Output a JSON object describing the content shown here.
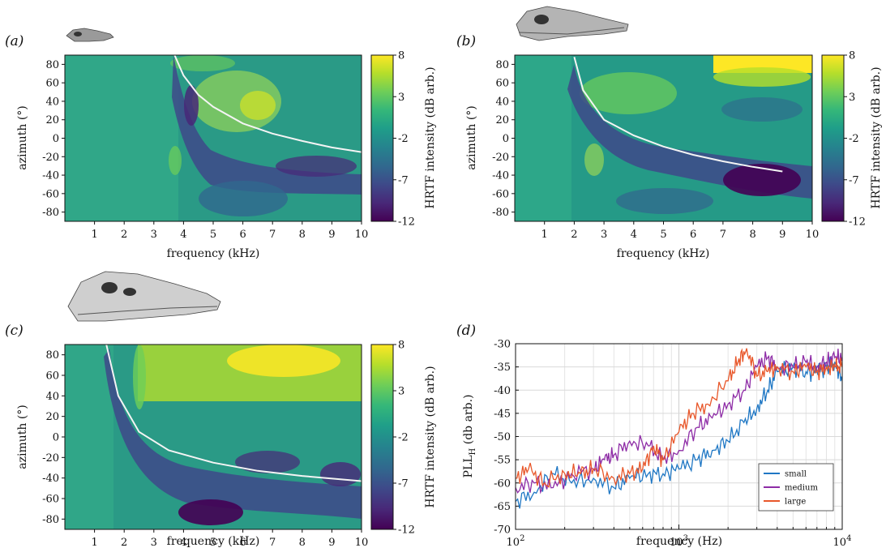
{
  "colors": {
    "viridis": [
      "#440154",
      "#482878",
      "#3e4989",
      "#31688e",
      "#26828e",
      "#1f9e89",
      "#35b779",
      "#6ece58",
      "#b5de2b",
      "#fde725"
    ],
    "small": "#1f77c4",
    "medium": "#8e2ca6",
    "large": "#e8572a",
    "curve": "#f4f4f4"
  },
  "icons": [
    "crocodile-skull-small-icon",
    "crocodile-skull-medium-icon",
    "crocodile-skull-large-icon"
  ],
  "colorbar": {
    "label": "HRTF intensity (dB arb.)",
    "ticks": [
      8,
      3,
      -2,
      -7,
      -12
    ],
    "range": [
      -12,
      8
    ]
  },
  "chart_data": [
    {
      "type": "heatmap",
      "panel": "(a)",
      "xlabel": "frequency (kHz)",
      "ylabel": "azimuth (°)",
      "xlim": [
        0,
        10
      ],
      "ylim": [
        -90,
        90
      ],
      "x_ticks": [
        1,
        2,
        3,
        4,
        5,
        6,
        7,
        8,
        9,
        10
      ],
      "y_ticks": [
        80,
        60,
        40,
        20,
        0,
        -20,
        -40,
        -60,
        -80
      ],
      "dip_curve": {
        "x": [
          3.7,
          4.0,
          4.5,
          5.0,
          6.0,
          7.0,
          8.0,
          9.0,
          10.0
        ],
        "y": [
          90,
          68,
          47,
          34,
          16,
          5,
          -3,
          -10,
          -15
        ]
      }
    },
    {
      "type": "heatmap",
      "panel": "(b)",
      "xlabel": "frequency (kHz)",
      "ylabel": "azimuth (°)",
      "xlim": [
        0,
        10
      ],
      "ylim": [
        -90,
        90
      ],
      "x_ticks": [
        1,
        2,
        3,
        4,
        5,
        6,
        7,
        8,
        9,
        10
      ],
      "y_ticks": [
        80,
        60,
        40,
        20,
        0,
        -20,
        -40,
        -60,
        -80
      ],
      "dip_curve": {
        "x": [
          2.0,
          2.3,
          3.0,
          4.0,
          5.0,
          6.0,
          7.0,
          8.0,
          9.0
        ],
        "y": [
          88,
          52,
          20,
          3,
          -9,
          -18,
          -25,
          -31,
          -36
        ]
      }
    },
    {
      "type": "heatmap",
      "panel": "(c)",
      "xlabel": "frequency (kHz)",
      "ylabel": "azimuth (°)",
      "xlim": [
        0,
        10
      ],
      "ylim": [
        -90,
        90
      ],
      "x_ticks": [
        1,
        2,
        3,
        4,
        5,
        6,
        7,
        8,
        9,
        10
      ],
      "y_ticks": [
        80,
        60,
        40,
        20,
        0,
        -20,
        -40,
        -60,
        -80
      ],
      "dip_curve": {
        "x": [
          1.4,
          1.8,
          2.5,
          3.5,
          5.0,
          6.5,
          8.0,
          10.0
        ],
        "y": [
          90,
          40,
          5,
          -13,
          -25,
          -33,
          -38,
          -43
        ]
      }
    },
    {
      "type": "line",
      "panel": "(d)",
      "xlabel": "frequency (Hz)",
      "ylabel": "PLL",
      "ylabel_sub": "H",
      "ylabel_suffix": " (db arb.)",
      "xscale": "log",
      "xlim": [
        100,
        10000
      ],
      "ylim": [
        -70,
        -30
      ],
      "x_ticks": [
        {
          "base": "10",
          "exp": "2"
        },
        {
          "base": "10",
          "exp": "3"
        },
        {
          "base": "10",
          "exp": "4"
        }
      ],
      "y_ticks": [
        -30,
        -35,
        -40,
        -45,
        -50,
        -55,
        -60,
        -65,
        -70
      ],
      "grid": true,
      "legend_position": "bottom-right",
      "series": [
        {
          "name": "small",
          "color": "#1f77c4",
          "x": [
            100,
            130,
            170,
            220,
            300,
            400,
            500,
            650,
            800,
            1000,
            1300,
            1600,
            2000,
            2500,
            3000,
            3500,
            4000,
            5000,
            6000,
            7000,
            8000,
            9000,
            10000
          ],
          "y": [
            -64,
            -62,
            -58,
            -60,
            -59,
            -61,
            -59,
            -58,
            -58,
            -57,
            -55,
            -53,
            -51,
            -47,
            -44,
            -40,
            -36,
            -35,
            -36,
            -36,
            -35,
            -34,
            -38
          ]
        },
        {
          "name": "medium",
          "color": "#8e2ca6",
          "x": [
            100,
            130,
            170,
            220,
            300,
            350,
            400,
            500,
            650,
            800,
            1000,
            1300,
            1600,
            2000,
            2500,
            3000,
            3500,
            4000,
            5000,
            6000,
            7000,
            8000,
            9000,
            10000
          ],
          "y": [
            -61,
            -60,
            -61,
            -58,
            -57,
            -55,
            -54,
            -51,
            -52,
            -55,
            -53,
            -48,
            -46,
            -43,
            -40,
            -35,
            -33,
            -35,
            -35,
            -34,
            -35,
            -34,
            -33,
            -33
          ]
        },
        {
          "name": "large",
          "color": "#e8572a",
          "x": [
            100,
            120,
            150,
            200,
            250,
            300,
            400,
            500,
            600,
            700,
            800,
            1000,
            1200,
            1500,
            2000,
            2300,
            2600,
            3000,
            3500,
            4000,
            5000,
            6000,
            7000,
            8000,
            9000,
            10000
          ],
          "y": [
            -59,
            -57,
            -60,
            -58,
            -58,
            -57,
            -59,
            -58,
            -57,
            -52,
            -55,
            -49,
            -45,
            -43,
            -38,
            -34,
            -31,
            -37,
            -36,
            -35,
            -36,
            -35,
            -36,
            -35,
            -35,
            -35
          ]
        }
      ]
    }
  ]
}
